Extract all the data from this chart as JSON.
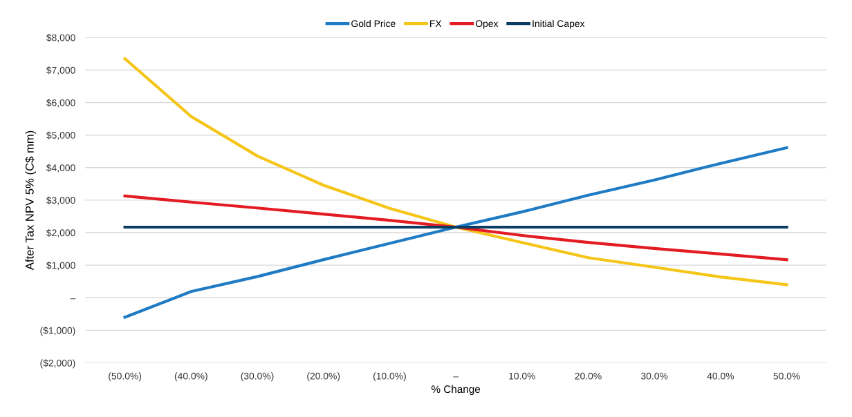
{
  "chart_data": {
    "type": "line",
    "xlabel": "% Change",
    "ylabel": "After Tax NPV 5% (C$ mm)",
    "categories": [
      "(50.0%)",
      "(40.0%)",
      "(30.0%)",
      "(20.0%)",
      "(10.0%)",
      "–",
      "10.0%",
      "20.0%",
      "30.0%",
      "40.0%",
      "50.0%"
    ],
    "series": [
      {
        "name": "Gold Price",
        "color": "#1f7bc4",
        "values": [
          -600,
          190,
          650,
          1170,
          1670,
          2170,
          2640,
          3150,
          3620,
          4130,
          4610
        ]
      },
      {
        "name": "FX",
        "color": "#f5c518",
        "values": [
          7350,
          5575,
          4360,
          3460,
          2750,
          2170,
          1700,
          1230,
          940,
          640,
          400
        ]
      },
      {
        "name": "Opex",
        "color": "#e31b23",
        "values": [
          3130,
          2940,
          2760,
          2570,
          2380,
          2170,
          1915,
          1700,
          1515,
          1345,
          1170
        ]
      },
      {
        "name": "Initial Capex",
        "color": "#0a3d62",
        "values": [
          2170,
          2170,
          2170,
          2170,
          2170,
          2170,
          2170,
          2170,
          2170,
          2170,
          2170
        ]
      }
    ],
    "ylim": [
      -2000,
      8000
    ],
    "yticks": [
      {
        "value": -2000,
        "label": "($2,000)"
      },
      {
        "value": -1000,
        "label": "($1,000)"
      },
      {
        "value": 0,
        "label": "–"
      },
      {
        "value": 1000,
        "label": "$1,000"
      },
      {
        "value": 2000,
        "label": "$2,000"
      },
      {
        "value": 3000,
        "label": "$3,000"
      },
      {
        "value": 4000,
        "label": "$4,000"
      },
      {
        "value": 5000,
        "label": "$5,000"
      },
      {
        "value": 6000,
        "label": "$6,000"
      },
      {
        "value": 7000,
        "label": "$7,000"
      },
      {
        "value": 8000,
        "label": "$8,000"
      }
    ],
    "grid": "y",
    "legend": "top",
    "marker": "none",
    "line_style": "solid"
  }
}
